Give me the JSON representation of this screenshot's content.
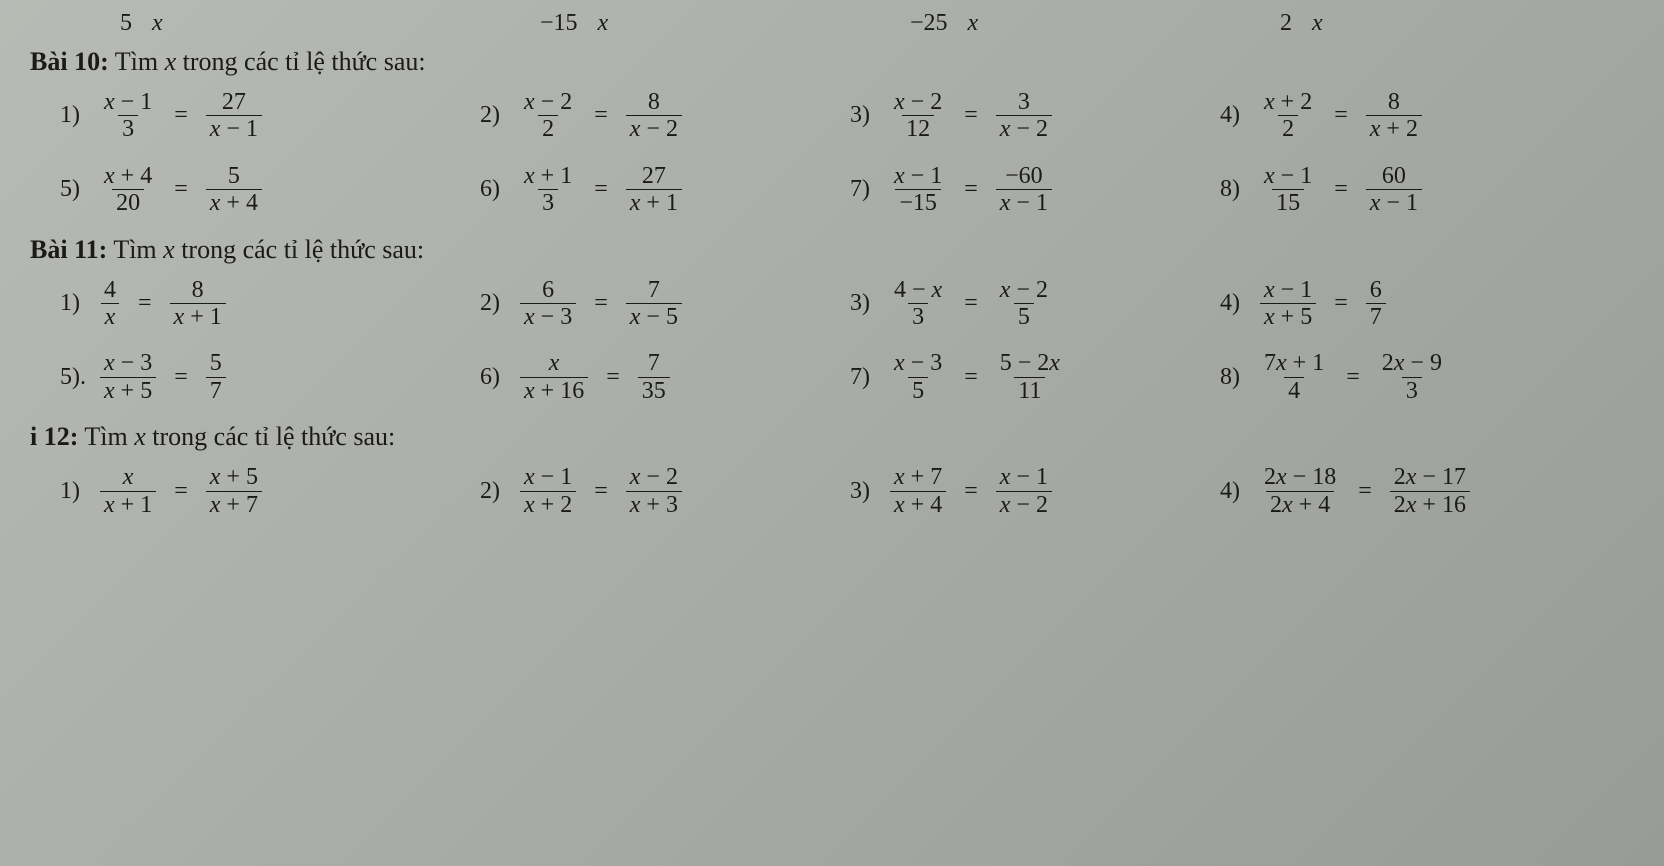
{
  "top_fragments": {
    "c1a": "5",
    "c1b": "x",
    "c2a": "−15",
    "c2b": "x",
    "c3a": "−25",
    "c3b": "x",
    "c4a": "2",
    "c4b": "x"
  },
  "sections": {
    "b10": {
      "label": "Bài 10:",
      "rest": " Tìm ",
      "var": "x",
      "rest2": " trong các tỉ lệ thức sau:"
    },
    "b11": {
      "label": "Bài 11:",
      "rest": " Tìm ",
      "var": "x",
      "rest2": " trong các tỉ lệ thức sau:"
    },
    "b12": {
      "label": "i 12:",
      "rest": " Tìm ",
      "var": "x",
      "rest2": " trong các tỉ lệ thức sau:"
    }
  },
  "b10": [
    {
      "n": "1)",
      "l": {
        "num": "x − 1",
        "den": "3"
      },
      "r": {
        "num": "27",
        "den": "x − 1"
      }
    },
    {
      "n": "2)",
      "l": {
        "num": "x − 2",
        "den": "2"
      },
      "r": {
        "num": "8",
        "den": "x − 2"
      }
    },
    {
      "n": "3)",
      "l": {
        "num": "x − 2",
        "den": "12"
      },
      "r": {
        "num": "3",
        "den": "x − 2"
      }
    },
    {
      "n": "4)",
      "l": {
        "num": "x + 2",
        "den": "2"
      },
      "r": {
        "num": "8",
        "den": "x + 2"
      }
    },
    {
      "n": "5)",
      "l": {
        "num": "x + 4",
        "den": "20"
      },
      "r": {
        "num": "5",
        "den": "x + 4"
      }
    },
    {
      "n": "6)",
      "l": {
        "num": "x + 1",
        "den": "3"
      },
      "r": {
        "num": "27",
        "den": "x + 1"
      }
    },
    {
      "n": "7)",
      "l": {
        "num": "x − 1",
        "den": "−15"
      },
      "r": {
        "num": "−60",
        "den": "x − 1"
      }
    },
    {
      "n": "8)",
      "l": {
        "num": "x − 1",
        "den": "15"
      },
      "r": {
        "num": "60",
        "den": "x − 1"
      }
    }
  ],
  "b11": [
    {
      "n": "1)",
      "l": {
        "num": "4",
        "den": "x"
      },
      "r": {
        "num": "8",
        "den": "x + 1"
      }
    },
    {
      "n": "2)",
      "l": {
        "num": "6",
        "den": "x − 3"
      },
      "r": {
        "num": "7",
        "den": "x − 5"
      }
    },
    {
      "n": "3)",
      "l": {
        "num": "4 − x",
        "den": "3"
      },
      "r": {
        "num": "x − 2",
        "den": "5"
      }
    },
    {
      "n": "4)",
      "l": {
        "num": "x − 1",
        "den": "x + 5"
      },
      "r": {
        "num": "6",
        "den": "7"
      }
    },
    {
      "n": "5).",
      "l": {
        "num": "x − 3",
        "den": "x + 5"
      },
      "r": {
        "num": "5",
        "den": "7"
      }
    },
    {
      "n": "6)",
      "l": {
        "num": "x",
        "den": "x + 16"
      },
      "r": {
        "num": "7",
        "den": "35"
      }
    },
    {
      "n": "7)",
      "l": {
        "num": "x − 3",
        "den": "5"
      },
      "r": {
        "num": "5 − 2x",
        "den": "11"
      }
    },
    {
      "n": "8)",
      "l": {
        "num": "7x + 1",
        "den": "4"
      },
      "r": {
        "num": "2x − 9",
        "den": "3"
      }
    }
  ],
  "b12": [
    {
      "n": "1)",
      "l": {
        "num": "x",
        "den": "x + 1"
      },
      "r": {
        "num": "x + 5",
        "den": "x + 7"
      }
    },
    {
      "n": "2)",
      "l": {
        "num": "x − 1",
        "den": "x + 2"
      },
      "r": {
        "num": "x − 2",
        "den": "x + 3"
      }
    },
    {
      "n": "3)",
      "l": {
        "num": "x + 7",
        "den": "x + 4"
      },
      "r": {
        "num": "x − 1",
        "den": "x − 2"
      }
    },
    {
      "n": "4)",
      "l": {
        "num": "2x − 18",
        "den": "2x + 4"
      },
      "r": {
        "num": "2x − 17",
        "den": "2x + 16"
      }
    }
  ],
  "equals": "="
}
